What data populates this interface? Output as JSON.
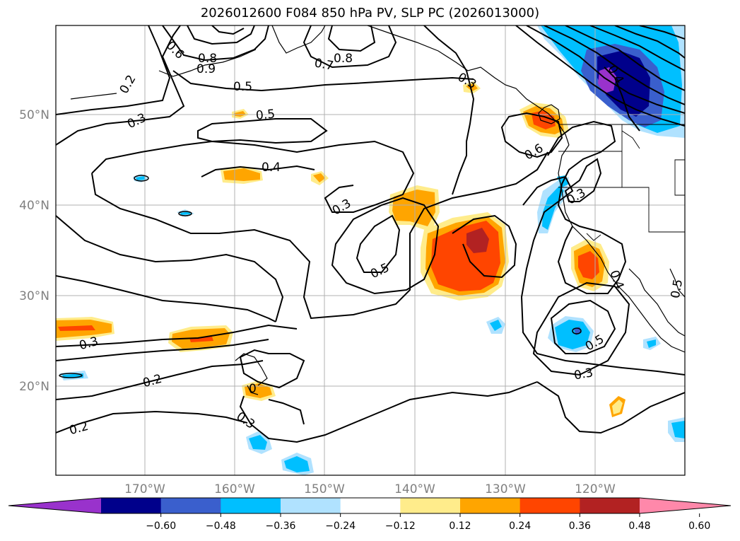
{
  "title": "2026012600 F084 850 hPa PV, SLP PC (2026013000)",
  "map": {
    "lat_labels": [
      "50°N",
      "40°N",
      "30°N",
      "20°N"
    ],
    "lon_labels": [
      "170°W",
      "160°W",
      "150°W",
      "140°W",
      "130°W",
      "120°W"
    ]
  },
  "colorbar": {
    "colors": [
      "#9932CC",
      "#00008B",
      "#3A5FCD",
      "#00BFFF",
      "#B0E2FF",
      "#FFFFFF",
      "#FFEC8B",
      "#FFA500",
      "#FF4500",
      "#B22222",
      "#FF88AA"
    ],
    "tick_labels": [
      "−0.60",
      "−0.48",
      "−0.36",
      "−0.24",
      "−0.12",
      "0.12",
      "0.24",
      "0.36",
      "0.48",
      "0.60"
    ]
  },
  "contour_labels": [
    "0.2",
    "0.3",
    "0.6",
    "0.8",
    "0.9",
    "0.7",
    "0.8",
    "0.5",
    "0.5",
    "0.3",
    "0.4",
    "0.3",
    "0.5",
    "0.5",
    "0.6",
    "0.3",
    "0.4",
    "0.5",
    "0.3",
    "0.3",
    "0.2",
    "0.2",
    "0.3",
    "0.4",
    "0"
  ]
}
